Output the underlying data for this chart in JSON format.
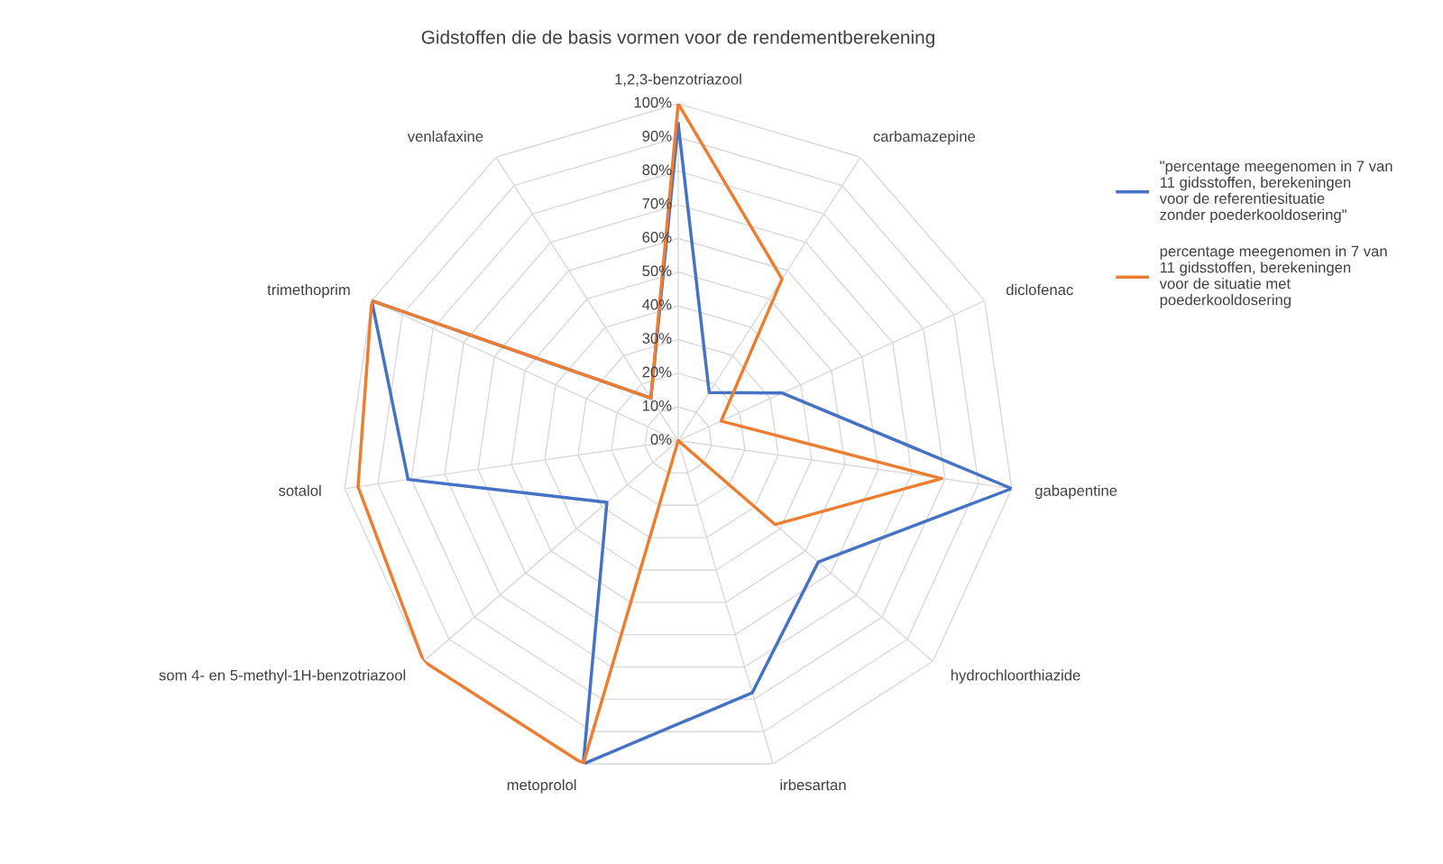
{
  "chart_data": {
    "type": "radar",
    "title": "Gidstoffen die de basis vormen voor de rendementberekening",
    "categories": [
      "1,2,3-benzotriazool",
      "carbamazepine",
      "diclofenac",
      "gabapentine",
      "hydrochloorthiazide",
      "irbesartan",
      "metoprolol",
      "som 4- en 5-methyl-1H-benzotriazool",
      "sotalol",
      "trimethoprim",
      "venlafaxine"
    ],
    "series": [
      {
        "name": "\"percentage meegenomen in 7 van 11 gidsstoffen, berekeningen voor de referentiesituatie zonder poederkooldosering\"",
        "color": "#4472c4",
        "values": [
          94,
          17,
          34,
          100,
          55,
          78,
          100,
          28,
          81,
          100,
          15
        ]
      },
      {
        "name": "percentage meegenomen in 7 van 11 gidsstoffen, berekeningen voor de situatie met poederkooldosering",
        "color": "#ed7d31",
        "values": [
          100,
          57,
          14,
          79,
          38,
          0,
          100,
          100,
          96,
          100,
          15
        ]
      }
    ],
    "ylim": [
      0,
      100
    ],
    "yticks": [
      {
        "value": 0,
        "label": "0%"
      },
      {
        "value": 10,
        "label": "10%"
      },
      {
        "value": 20,
        "label": "20%"
      },
      {
        "value": 30,
        "label": "30%"
      },
      {
        "value": 40,
        "label": "40%"
      },
      {
        "value": 50,
        "label": "50%"
      },
      {
        "value": 60,
        "label": "60%"
      },
      {
        "value": 70,
        "label": "70%"
      },
      {
        "value": 80,
        "label": "80%"
      },
      {
        "value": 90,
        "label": "90%"
      },
      {
        "value": 100,
        "label": "100%"
      }
    ],
    "grid": true,
    "legend": "right",
    "marker": "none",
    "line_style": "solid"
  }
}
